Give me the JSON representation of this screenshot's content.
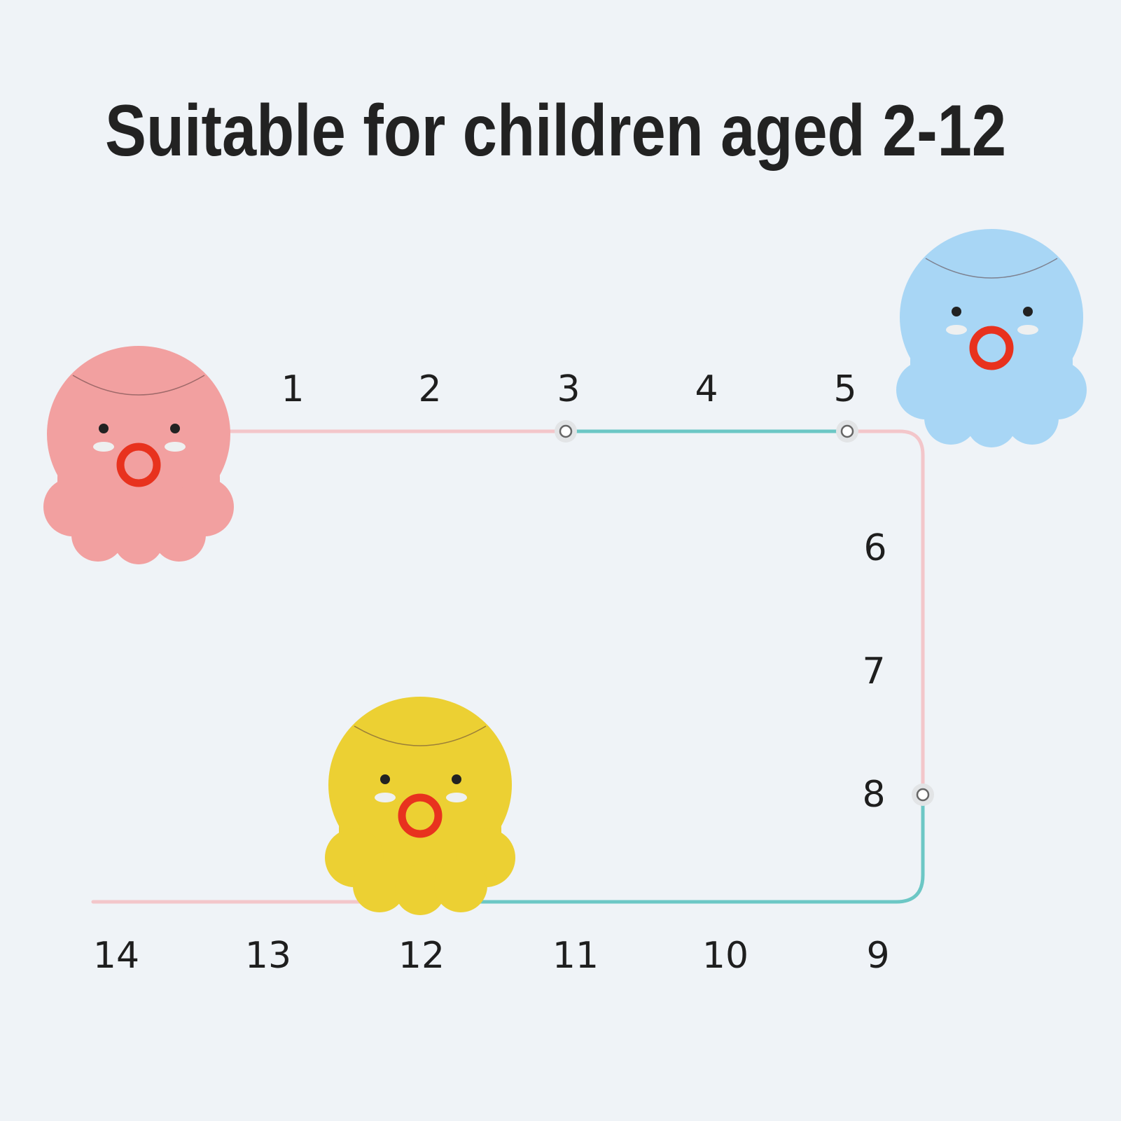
{
  "title": "Suitable for children aged 2-12",
  "path_numbers": [
    "1",
    "2",
    "3",
    "4",
    "5",
    "6",
    "7",
    "8",
    "9",
    "10",
    "11",
    "12",
    "13",
    "14"
  ],
  "colors": {
    "background": "#eff3f7",
    "title": "#222222",
    "pink_tube": "#f3c6ca",
    "teal_tube": "#6cc7c5",
    "octopus_pink": "#f2a0a0",
    "octopus_blue": "#a8d6f5",
    "octopus_yellow": "#ecd033",
    "ring": "#e8321e"
  },
  "octopi": [
    {
      "color": "pink"
    },
    {
      "color": "blue"
    },
    {
      "color": "yellow"
    }
  ]
}
